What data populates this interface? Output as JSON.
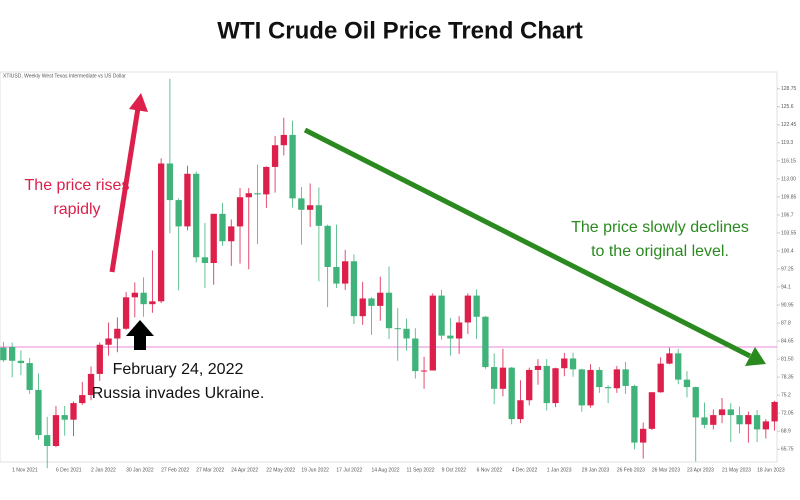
{
  "chart_data": {
    "type": "candlestick",
    "title": "WTI Crude Oil Price Trend Chart",
    "chart_label": "XTIUSD, Weekly   West Texas Intermediate vs US Dollar",
    "annotations": {
      "rise": [
        "The price rises",
        "rapidly"
      ],
      "event": [
        "February 24, 2022",
        "Russia invades Ukraine."
      ],
      "decline": [
        "The price slowly declines",
        "to the original level."
      ]
    },
    "categories": [
      null,
      "1 Nov 2021",
      null,
      null,
      null,
      null,
      "6 Dec 2021",
      null,
      null,
      null,
      "2 Jan 2022",
      null,
      null,
      null,
      "30 Jan 2022",
      null,
      null,
      null,
      "27 Feb 2022",
      null,
      null,
      null,
      "27 Mar 2022",
      null,
      null,
      null,
      "24 Apr 2022",
      null,
      null,
      null,
      "22 May 2022",
      null,
      null,
      null,
      "19 Jun 2022",
      null,
      null,
      null,
      "17 Jul 2022",
      null,
      null,
      null,
      "14 Aug 2022",
      null,
      null,
      null,
      "11 Sep 2022",
      null,
      null,
      null,
      "9 Oct 2022",
      null,
      null,
      null,
      "6 Nov 2022",
      null,
      null,
      null,
      "4 Dec 2022",
      null,
      null,
      null,
      "1 Jan 2023",
      null,
      null,
      null,
      "29 Jan 2023",
      null,
      null,
      null,
      "26 Feb 2023",
      null,
      null,
      null,
      "26 Mar 2023",
      null,
      null,
      null,
      "23 Apr 2023",
      null,
      null,
      null,
      "21 May 2023",
      null,
      null,
      null,
      "18 Jun 2023",
      null,
      null
    ],
    "open": [
      83.5,
      83.6,
      81.2,
      80.8,
      76.1,
      68.2,
      66.3,
      71.7,
      70.9,
      73.8,
      75.2,
      78.9,
      84.0,
      85.1,
      86.8,
      92.3,
      93.1,
      91.1,
      91.6,
      115.7,
      109.3,
      104.7,
      113.9,
      99.3,
      98.3,
      106.9,
      102.1,
      104.7,
      109.8,
      110.5,
      110.3,
      115.1,
      118.9,
      120.7,
      109.6,
      107.6,
      108.4,
      104.8,
      97.6,
      94.7,
      98.6,
      89.0,
      92.1,
      90.8,
      93.1,
      86.9,
      86.8,
      85.1,
      79.4,
      79.5,
      92.6,
      85.6,
      85.1,
      87.9,
      92.6,
      88.9,
      80.1,
      76.3,
      80.0,
      71.0,
      74.3,
      79.6,
      80.3,
      73.8,
      79.9,
      81.6,
      79.7,
      73.4,
      79.6,
      76.6,
      76.4,
      79.7,
      76.8,
      66.9,
      69.3,
      75.7,
      80.7,
      82.5,
      77.9,
      76.6,
      71.3,
      70.0,
      71.7,
      72.7,
      71.7,
      70.1,
      71.7,
      69.2,
      70.6
    ],
    "high": [
      84.5,
      84.4,
      83.0,
      81.7,
      79.0,
      71.4,
      73.3,
      73.3,
      74.1,
      77.5,
      80.2,
      84.4,
      87.9,
      88.8,
      93.2,
      94.9,
      95.8,
      100.5,
      116.6,
      130.5,
      109.6,
      115.3,
      114.3,
      105.3,
      106.9,
      108.8,
      105.9,
      111.4,
      111.4,
      115.5,
      115.2,
      120.5,
      123.7,
      123.2,
      111.6,
      112.2,
      111.5,
      105.0,
      105.0,
      100.6,
      99.8,
      95.0,
      92.3,
      95.9,
      97.7,
      90.4,
      88.6,
      86.9,
      81.9,
      93.0,
      93.6,
      88.7,
      89.0,
      93.0,
      93.7,
      89.0,
      82.5,
      83.3,
      80.1,
      77.8,
      80.0,
      81.5,
      81.5,
      80.0,
      82.6,
      82.6,
      79.8,
      80.6,
      80.1,
      76.9,
      80.3,
      81.0,
      77.0,
      70.4,
      75.7,
      81.8,
      83.5,
      83.3,
      79.4,
      76.7,
      73.9,
      72.7,
      74.7,
      73.8,
      73.2,
      72.3,
      72.6,
      71.0,
      74.2
    ],
    "low": [
      81.0,
      78.3,
      78.7,
      75.4,
      67.4,
      62.4,
      66.1,
      68.1,
      68.0,
      73.5,
      74.3,
      77.7,
      82.1,
      82.7,
      86.6,
      88.8,
      88.9,
      89.6,
      91.3,
      103.5,
      93.5,
      104.0,
      98.4,
      93.9,
      94.5,
      101.3,
      97.8,
      98.2,
      97.2,
      101.6,
      107.9,
      110.6,
      117.1,
      108.0,
      101.5,
      104.6,
      95.1,
      90.6,
      93.9,
      93.6,
      87.6,
      87.5,
      85.7,
      88.2,
      85.0,
      81.2,
      83.0,
      78.1,
      76.3,
      79.5,
      84.9,
      82.1,
      82.4,
      85.9,
      85.0,
      79.8,
      73.6,
      75.0,
      70.1,
      70.3,
      73.4,
      77.0,
      72.5,
      73.1,
      78.5,
      78.4,
      72.3,
      73.0,
      75.6,
      73.8,
      75.6,
      75.4,
      65.7,
      64.1,
      69.1,
      75.6,
      80.6,
      77.1,
      74.8,
      63.6,
      69.4,
      69.2,
      70.3,
      67.0,
      68.5,
      66.9,
      67.0,
      67.6,
      69.0
    ],
    "close": [
      81.3,
      81.2,
      80.8,
      76.1,
      68.2,
      66.3,
      71.7,
      70.9,
      73.8,
      75.2,
      78.9,
      84.0,
      85.1,
      86.8,
      92.3,
      93.1,
      91.1,
      91.6,
      115.7,
      109.3,
      104.7,
      113.9,
      99.3,
      98.3,
      106.9,
      102.1,
      104.7,
      109.8,
      110.5,
      110.3,
      115.1,
      118.9,
      120.7,
      109.6,
      107.6,
      108.4,
      104.8,
      97.6,
      94.7,
      98.6,
      89.0,
      92.1,
      90.8,
      93.1,
      86.9,
      86.8,
      85.1,
      79.4,
      79.5,
      92.6,
      85.6,
      85.1,
      87.9,
      92.6,
      88.9,
      80.1,
      76.3,
      80.0,
      71.0,
      74.3,
      79.6,
      80.3,
      73.8,
      79.9,
      81.6,
      79.7,
      73.4,
      79.6,
      76.6,
      76.4,
      79.7,
      76.8,
      66.9,
      69.3,
      75.7,
      80.7,
      82.5,
      77.9,
      76.6,
      71.3,
      70.0,
      71.7,
      72.7,
      71.7,
      70.1,
      71.7,
      69.2,
      70.6,
      74.0
    ],
    "up_color": "#dc1f4b",
    "down_color": "#3fb37a",
    "reference_line": 83.6,
    "reference_color": "#e88ad8",
    "ylim": [
      63.5,
      131.7
    ],
    "yticks": [
      {
        "value": 65.75,
        "label": "65.75"
      },
      68.9,
      72.05,
      75.2,
      78.35,
      {
        "value": 81.5,
        "label": "81.50"
      },
      84.65,
      87.8,
      90.95,
      94.1,
      97.25,
      100.4,
      103.55,
      106.7,
      109.85,
      {
        "value": 113,
        "label": "113.00"
      },
      116.15,
      119.3,
      122.45,
      125.6,
      128.75
    ]
  }
}
